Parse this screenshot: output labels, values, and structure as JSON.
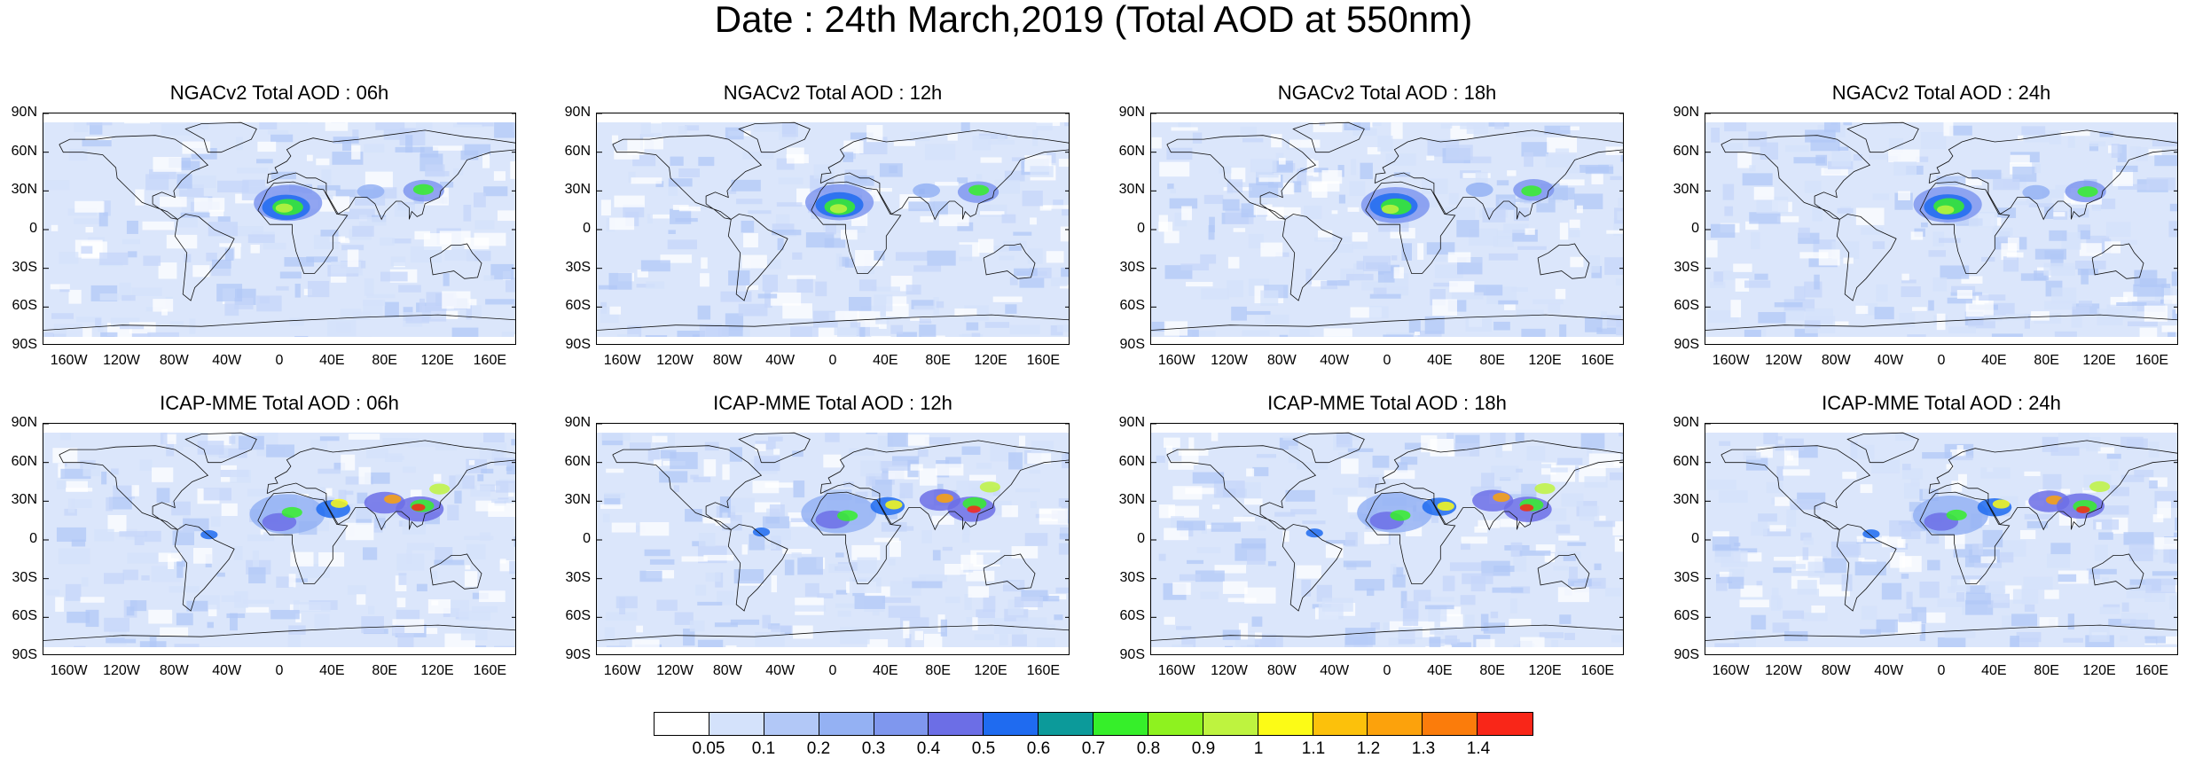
{
  "title": "Date : 24th March,2019 (Total AOD at 550nm)",
  "panels": [
    {
      "title": "NGACv2 Total AOD : 06h",
      "model": "NGACv2",
      "hour": "06h"
    },
    {
      "title": "NGACv2 Total AOD : 12h",
      "model": "NGACv2",
      "hour": "12h"
    },
    {
      "title": "NGACv2 Total AOD : 18h",
      "model": "NGACv2",
      "hour": "18h"
    },
    {
      "title": "NGACv2 Total AOD : 24h",
      "model": "NGACv2",
      "hour": "24h"
    },
    {
      "title": "ICAP-MME Total AOD : 06h",
      "model": "ICAP-MME",
      "hour": "06h"
    },
    {
      "title": "ICAP-MME Total AOD : 12h",
      "model": "ICAP-MME",
      "hour": "12h"
    },
    {
      "title": "ICAP-MME Total AOD : 18h",
      "model": "ICAP-MME",
      "hour": "18h"
    },
    {
      "title": "ICAP-MME Total AOD : 24h",
      "model": "ICAP-MME",
      "hour": "24h"
    }
  ],
  "lat_ticks": [
    "90N",
    "60N",
    "30N",
    "0",
    "30S",
    "60S",
    "90S"
  ],
  "lon_ticks": [
    "160W",
    "120W",
    "80W",
    "40W",
    "0",
    "40E",
    "80E",
    "120E",
    "160E"
  ],
  "colorbar": {
    "labels": [
      "0.05",
      "0.1",
      "0.2",
      "0.3",
      "0.4",
      "0.5",
      "0.6",
      "0.7",
      "0.8",
      "0.9",
      "1",
      "1.1",
      "1.2",
      "1.3",
      "1.4"
    ],
    "colors": [
      "#ffffff",
      "#d4e2fb",
      "#b2c8f7",
      "#94b1f3",
      "#7f97ee",
      "#6c6ee6",
      "#1f6bf0",
      "#0c9a9a",
      "#36ef2a",
      "#8ef21f",
      "#bef33f",
      "#fcfb16",
      "#fcc10b",
      "#fca20c",
      "#fb7c0b",
      "#f92618"
    ]
  }
}
